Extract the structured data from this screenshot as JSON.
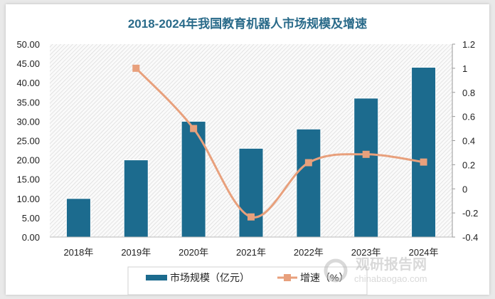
{
  "chart_data": {
    "type": "bar+line",
    "title": "2018-2024年我国教育机器人市场规模及增速",
    "categories": [
      "2018年",
      "2019年",
      "2020年",
      "2021年",
      "2022年",
      "2023年",
      "2024年"
    ],
    "series": [
      {
        "name": "市场规模（亿元）",
        "type": "bar",
        "axis": "left",
        "color": "#1c6b8e",
        "values": [
          10,
          20,
          30,
          23,
          28,
          36,
          44
        ]
      },
      {
        "name": "增速（%）",
        "type": "line",
        "smooth": true,
        "axis": "right",
        "color": "#e8a07c",
        "values": [
          null,
          1.0,
          0.5,
          -0.233,
          0.217,
          0.286,
          0.222
        ]
      }
    ],
    "left_axis": {
      "ylim": [
        0,
        50
      ],
      "ticks": [
        "0.00",
        "5.00",
        "10.00",
        "15.00",
        "20.00",
        "25.00",
        "30.00",
        "35.00",
        "40.00",
        "45.00",
        "50.00"
      ]
    },
    "right_axis": {
      "ylim": [
        -0.4,
        1.2
      ],
      "ticks": [
        "-0.4",
        "-0.2",
        "0",
        "0.2",
        "0.4",
        "0.6",
        "0.8",
        "1",
        "1.2"
      ]
    },
    "legend_position": "bottom",
    "grid": false
  },
  "watermark": {
    "text": "观研报告网",
    "url_text": "chinabaogao.com"
  }
}
